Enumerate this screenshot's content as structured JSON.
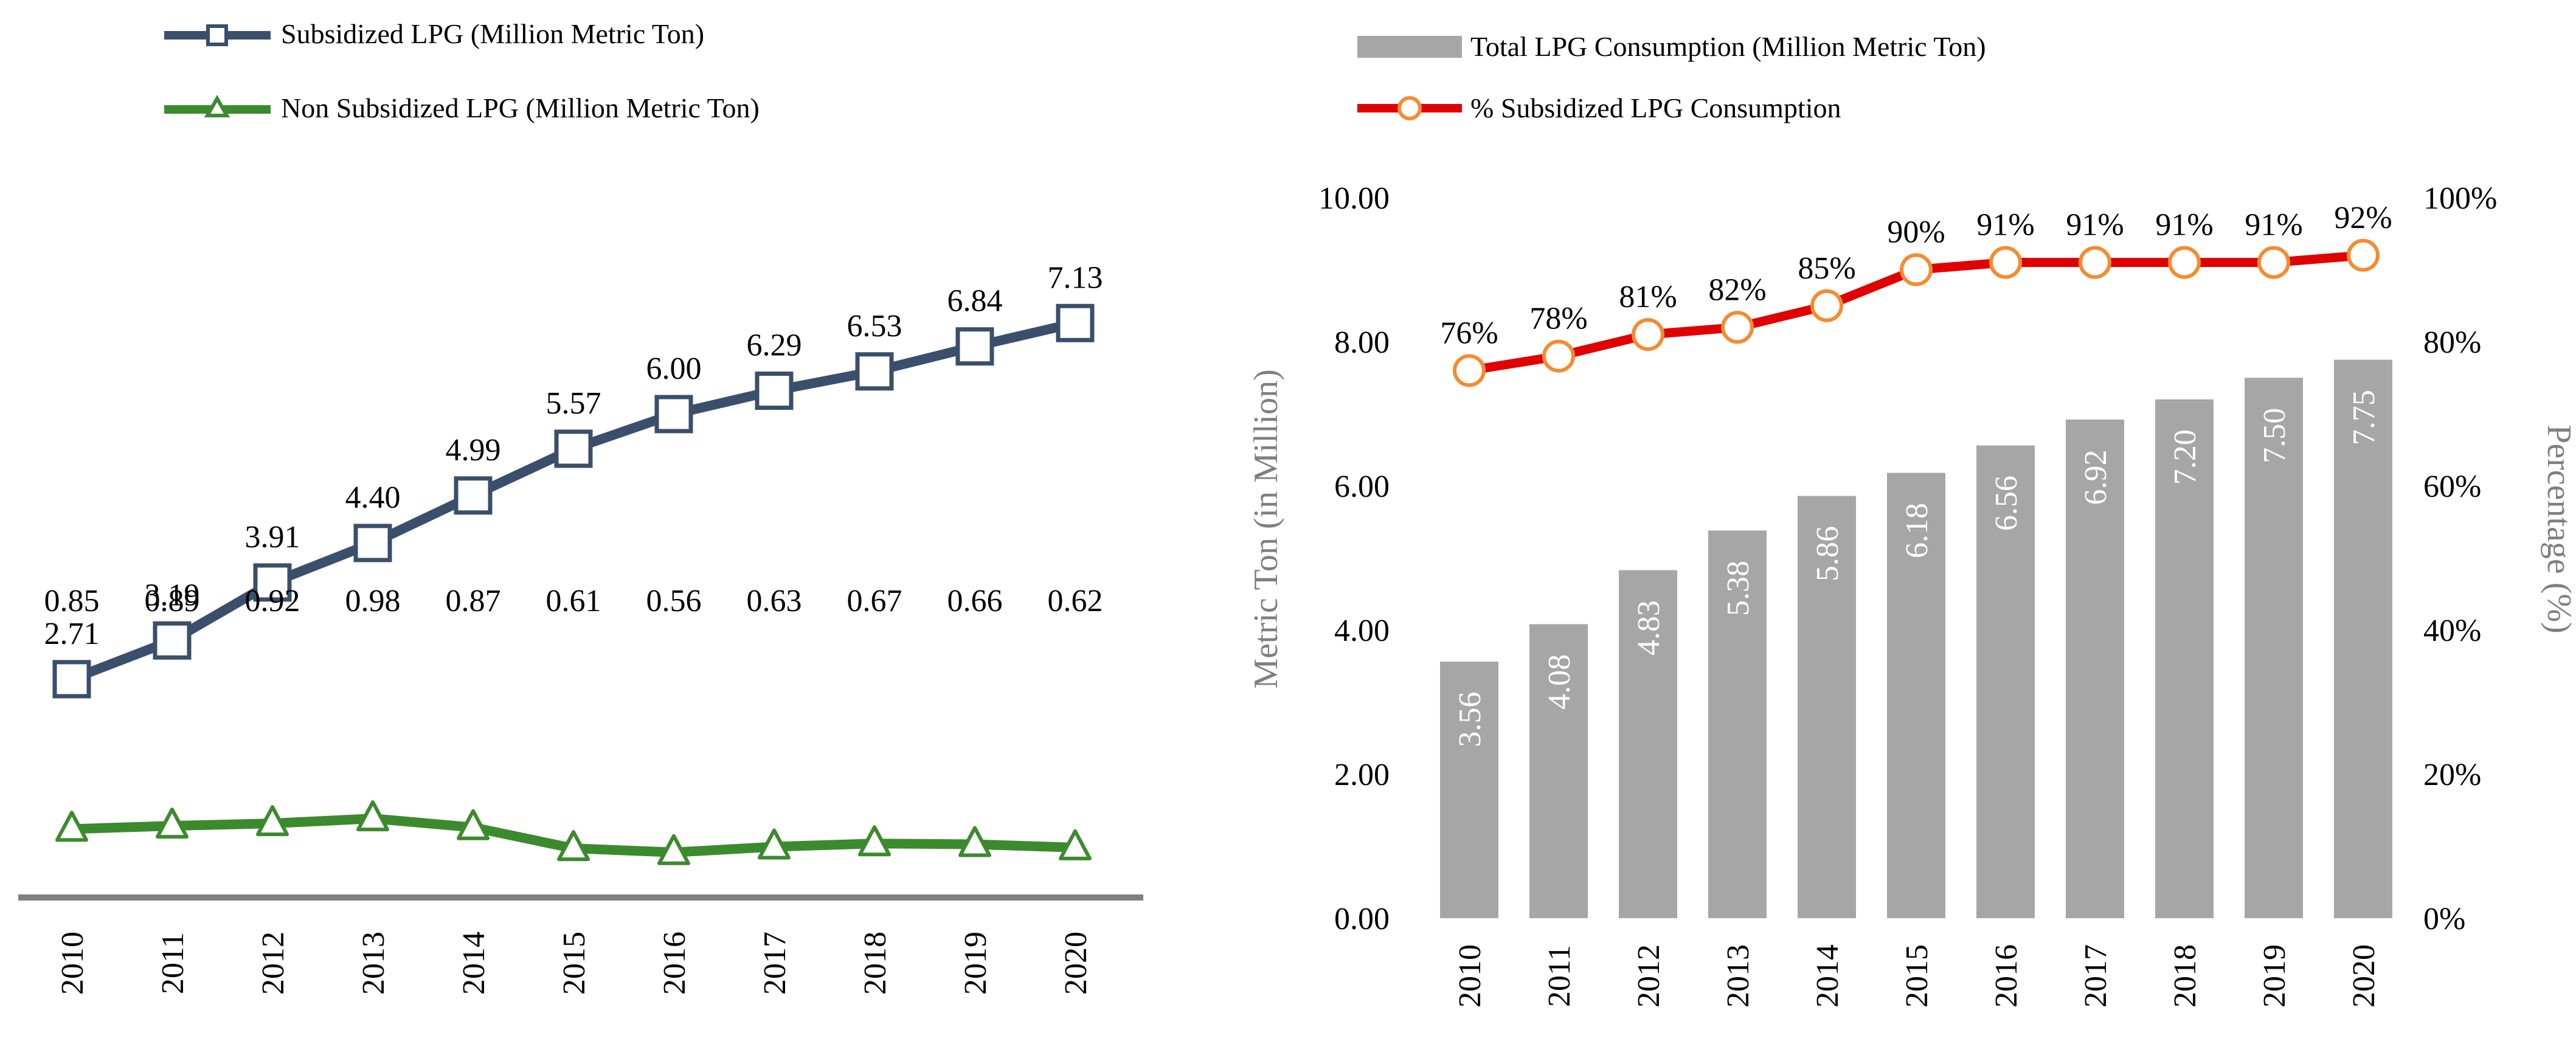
{
  "colors": {
    "subsidized": "#3A4F6B",
    "non_subsidized": "#3C8A2E",
    "bars": "#A6A6A6",
    "pct_line": "#E00000",
    "pct_marker": "#F58B2F",
    "axis_text": "#7F7F7F",
    "baseline": "#7F7F7F",
    "text": "#000000"
  },
  "chart_data": [
    {
      "type": "line",
      "title": "",
      "x": [
        "2010",
        "2011",
        "2012",
        "2013",
        "2014",
        "2015",
        "2016",
        "2017",
        "2018",
        "2019",
        "2020"
      ],
      "series": [
        {
          "name": "Subsidized LPG (Million Metric Ton)",
          "marker": "square",
          "values": [
            2.71,
            3.19,
            3.91,
            4.4,
            4.99,
            5.57,
            6.0,
            6.29,
            6.53,
            6.84,
            7.13
          ],
          "labels": [
            "2.71",
            "3.19",
            "3.91",
            "4.40",
            "4.99",
            "5.57",
            "6.00",
            "6.29",
            "6.53",
            "6.84",
            "7.13"
          ]
        },
        {
          "name": "Non Subsidized LPG (Million Metric Ton)",
          "marker": "triangle",
          "values": [
            0.85,
            0.89,
            0.92,
            0.98,
            0.87,
            0.61,
            0.56,
            0.63,
            0.67,
            0.66,
            0.62
          ],
          "labels": [
            "0.85",
            "0.89",
            "0.92",
            "0.98",
            "0.87",
            "0.61",
            "0.56",
            "0.63",
            "0.67",
            "0.66",
            "0.62"
          ]
        }
      ],
      "ylim": [
        0,
        8
      ],
      "legend": "top-left"
    },
    {
      "type": "bar",
      "title": "",
      "categories": [
        "2010",
        "2011",
        "2012",
        "2013",
        "2014",
        "2015",
        "2016",
        "2017",
        "2018",
        "2019",
        "2020"
      ],
      "series": [
        {
          "name": "Total LPG Consumption (Million Metric Ton)",
          "axis": "left",
          "values": [
            3.56,
            4.08,
            4.83,
            5.38,
            5.86,
            6.18,
            6.56,
            6.92,
            7.2,
            7.5,
            7.75
          ],
          "labels": [
            "3.56",
            "4.08",
            "4.83",
            "5.38",
            "5.86",
            "6.18",
            "6.56",
            "6.92",
            "7.20",
            "7.50",
            "7.75"
          ]
        },
        {
          "name": "% Subsidized LPG Consumption",
          "type": "line",
          "axis": "right",
          "values": [
            76,
            78,
            81,
            82,
            85,
            90,
            91,
            91,
            91,
            91,
            92
          ],
          "labels": [
            "76%",
            "78%",
            "81%",
            "82%",
            "85%",
            "90%",
            "91%",
            "91%",
            "91%",
            "91%",
            "92%"
          ]
        }
      ],
      "ylabel": "Metric Ton (in Million)",
      "y2label": "Percentage (%)",
      "ylim": [
        0,
        10
      ],
      "y2lim": [
        0,
        100
      ],
      "yticks": [
        "0.00",
        "2.00",
        "4.00",
        "6.00",
        "8.00",
        "10.00"
      ],
      "y2ticks": [
        "0%",
        "20%",
        "40%",
        "60%",
        "80%",
        "100%"
      ],
      "legend": "top"
    }
  ]
}
